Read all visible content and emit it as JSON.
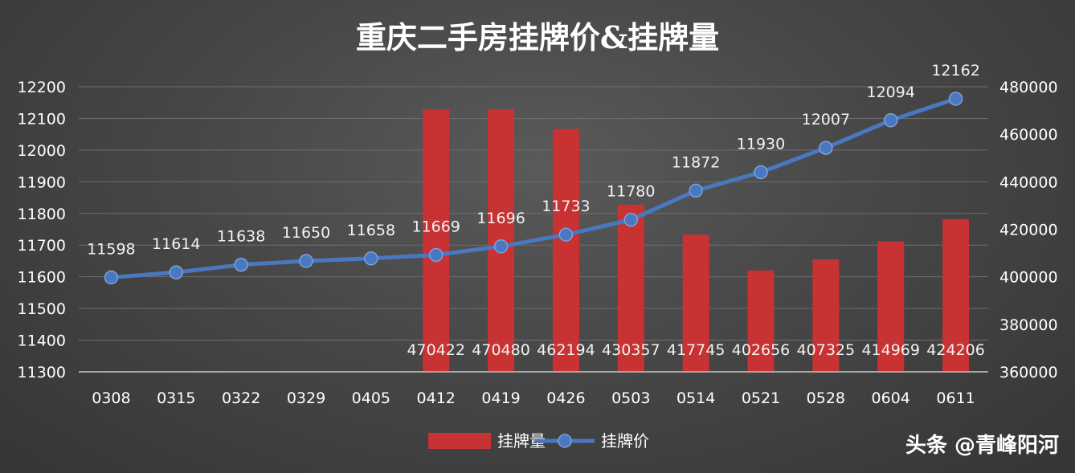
{
  "chart_data": {
    "type": "bar+line",
    "title": "重庆二手房挂牌价&挂牌量",
    "categories": [
      "0308",
      "0315",
      "0322",
      "0329",
      "0405",
      "0412",
      "0419",
      "0426",
      "0503",
      "0514",
      "0521",
      "0528",
      "0604",
      "0611"
    ],
    "series": [
      {
        "name": "挂牌量",
        "type": "bar",
        "axis": "right",
        "color": "#c83232",
        "values": [
          null,
          null,
          null,
          null,
          null,
          470422,
          470480,
          462194,
          430357,
          417745,
          402656,
          407325,
          414969,
          424206
        ],
        "labels": [
          "",
          "",
          "",
          "",
          "",
          "470422",
          "470480",
          "462194",
          "430357",
          "417745",
          "402656",
          "407325",
          "414969",
          "424206"
        ]
      },
      {
        "name": "挂牌价",
        "type": "line",
        "axis": "left",
        "color": "#4a78c0",
        "values": [
          11598,
          11614,
          11638,
          11650,
          11658,
          11669,
          11696,
          11733,
          11780,
          11872,
          11930,
          12007,
          12094,
          12162
        ]
      }
    ],
    "y_left": {
      "min": 11300,
      "max": 12200,
      "ticks": [
        11300,
        11400,
        11500,
        11600,
        11700,
        11800,
        11900,
        12000,
        12100,
        12200
      ]
    },
    "y_right": {
      "min": 360000,
      "max": 480000,
      "ticks": [
        360000,
        380000,
        400000,
        420000,
        440000,
        460000,
        480000
      ]
    },
    "grid": true,
    "legend": "bottom"
  },
  "watermark": "头条 @青峰阳河"
}
